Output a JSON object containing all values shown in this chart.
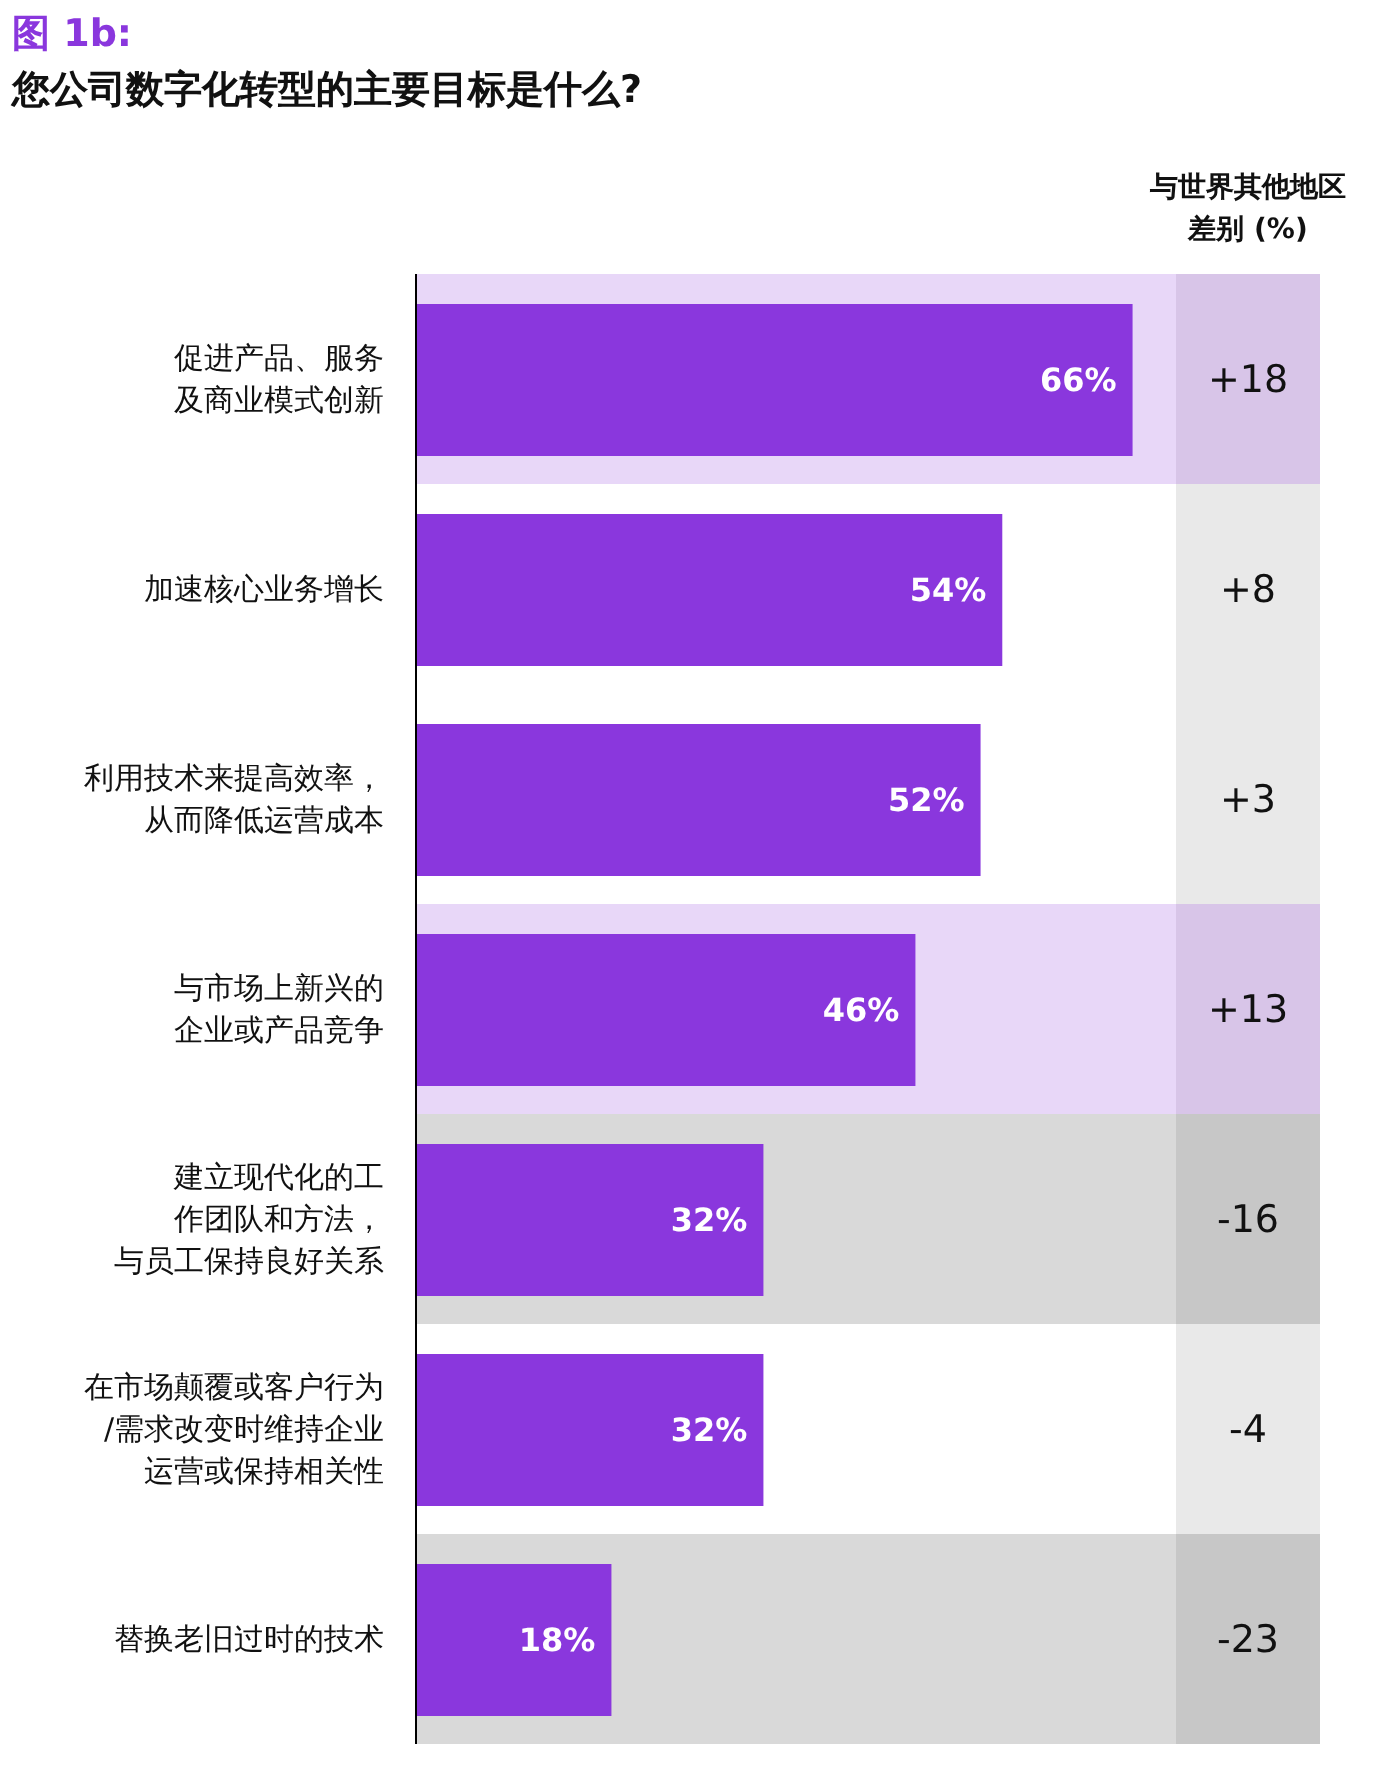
{
  "chart_data": [
    {
      "type": "bar",
      "orientation": "horizontal",
      "title": "图 1b:",
      "subtitle": "您公司数字化转型的主要目标是什么?",
      "categories": [
        "促进产品、服务及商业模式创新",
        "加速核心业务增长",
        "利用技术来提高效率，从而降低运营成本",
        "与市场上新兴的企业或产品竞争",
        "建立现代化的工作团队和方法，与员工保持良好关系",
        "在市场颠覆或客户行为/需求改变时维持企业运营或保持相关性",
        "替换老旧过时的技术"
      ],
      "values": [
        66,
        54,
        52,
        46,
        32,
        32,
        18
      ],
      "value_labels": [
        "66%",
        "54%",
        "52%",
        "46%",
        "32%",
        "32%",
        "18%"
      ],
      "color": "#8a37dd",
      "xlim": [
        0,
        70
      ],
      "tick_labels": "y",
      "bands": [
        {
          "axis": "y",
          "from": "促进产品、服务及商业模式创新",
          "to": "促进产品、服务及商业模式创新",
          "color": "#e8d7f8"
        },
        {
          "axis": "y",
          "from": "与市场上新兴的企业或产品竞争",
          "to": "与市场上新兴的企业或产品竞争",
          "color": "#e8d7f8"
        },
        {
          "axis": "y",
          "from": "建立现代化的工作团队和方法，与员工保持良好关系",
          "to": "建立现代化的工作团队和方法，与员工保持良好关系",
          "color": "#d9d9d9"
        },
        {
          "axis": "y",
          "from": "替换老旧过时的技术",
          "to": "替换老旧过时的技术",
          "color": "#d9d9d9"
        }
      ]
    },
    {
      "type": "other",
      "title": "与世界其他地区差别 (%)",
      "categories": [
        null,
        null,
        null,
        null,
        null,
        null,
        null
      ],
      "values": [
        18,
        8,
        3,
        13,
        -16,
        -4,
        -23
      ],
      "value_labels": [
        "+18",
        "+8",
        "+3",
        "+13",
        "-16",
        "-4",
        "-23"
      ],
      "colors": [
        "#d8c5e8",
        "#e9e9e9",
        "#e9e9e9",
        "#d8c5e8",
        "#c7c7c7",
        "#e9e9e9",
        "#c7c7c7"
      ]
    }
  ]
}
